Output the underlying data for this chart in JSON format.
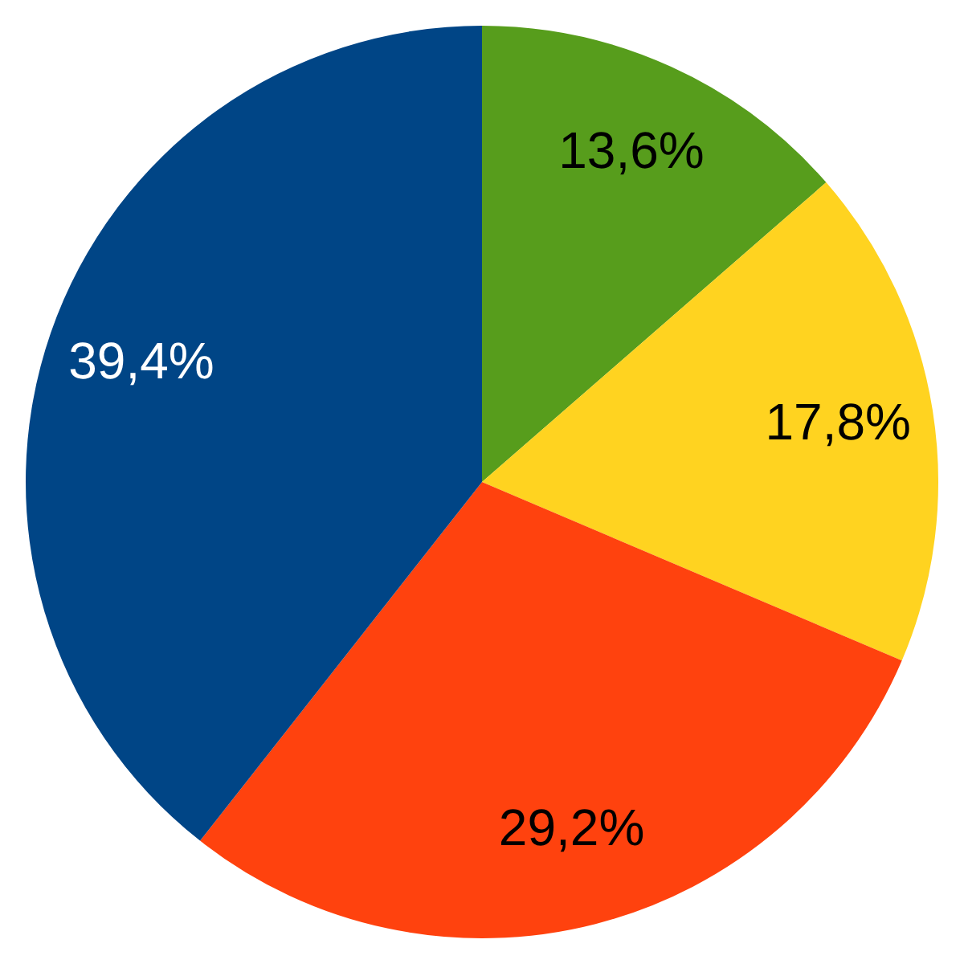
{
  "chart_data": {
    "type": "pie",
    "categories": [
      null,
      null,
      null,
      null
    ],
    "values": [
      13.6,
      17.8,
      29.2,
      39.4
    ],
    "colors": [
      "#579d1c",
      "#ffd320",
      "#ff420e",
      "#004586"
    ],
    "value_labels": [
      "13,6%",
      "17,8%",
      "29,2%",
      "39,4%"
    ]
  }
}
